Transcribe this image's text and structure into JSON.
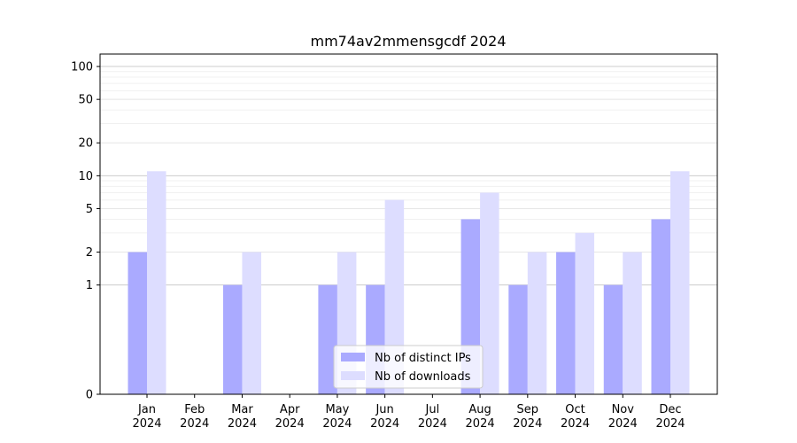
{
  "chart_data": {
    "type": "bar",
    "title": "mm74av2mmensgcdf 2024",
    "xlabel": "",
    "ylabel": "",
    "yscale": "symlog",
    "ylim": [
      0,
      130
    ],
    "yticks": [
      0,
      1,
      2,
      5,
      10,
      20,
      50,
      100
    ],
    "ytick_labels": [
      "0",
      "1",
      "2",
      "5",
      "10",
      "20",
      "50",
      "100"
    ],
    "categories": [
      "Jan\n2024",
      "Feb\n2024",
      "Mar\n2024",
      "Apr\n2024",
      "May\n2024",
      "Jun\n2024",
      "Jul\n2024",
      "Aug\n2024",
      "Sep\n2024",
      "Oct\n2024",
      "Nov\n2024",
      "Dec\n2024"
    ],
    "category_lines": [
      [
        "Jan",
        "2024"
      ],
      [
        "Feb",
        "2024"
      ],
      [
        "Mar",
        "2024"
      ],
      [
        "Apr",
        "2024"
      ],
      [
        "May",
        "2024"
      ],
      [
        "Jun",
        "2024"
      ],
      [
        "Jul",
        "2024"
      ],
      [
        "Aug",
        "2024"
      ],
      [
        "Sep",
        "2024"
      ],
      [
        "Oct",
        "2024"
      ],
      [
        "Nov",
        "2024"
      ],
      [
        "Dec",
        "2024"
      ]
    ],
    "series": [
      {
        "name": "Nb of distinct IPs",
        "color": "#aaaaff",
        "values": [
          2,
          0,
          1,
          0,
          1,
          1,
          0,
          4,
          1,
          2,
          1,
          4
        ]
      },
      {
        "name": "Nb of downloads",
        "color": "#ddddff",
        "values": [
          11,
          0,
          2,
          0,
          2,
          6,
          0,
          7,
          2,
          3,
          2,
          11
        ]
      }
    ],
    "grid": true,
    "legend_position": "lower-center"
  }
}
